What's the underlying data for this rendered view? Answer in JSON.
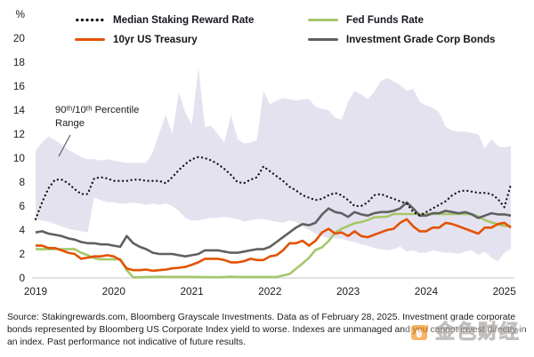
{
  "legend": {
    "items": [
      {
        "label": "Median Staking Reward Rate",
        "style": "dotted",
        "color": "#161616"
      },
      {
        "label": "Fed Funds Rate",
        "style": "solid",
        "color": "#a5c76b"
      },
      {
        "label": "10yr US Treasury",
        "style": "solid",
        "color": "#e25303"
      },
      {
        "label": "Investment Grade Corp Bonds",
        "style": "solid",
        "color": "#606063"
      }
    ]
  },
  "annotation": {
    "text": "90ᵗʰ/10ᵗʰ Percentile Range"
  },
  "source": "Source: Stakingrewards.com, Bloomberg Grayscale Investments. Data as of February 28, 2025. Investment grade corporate bonds represented by Bloomberg US Corporate Index yield to worse. Indexes are unmanaged and you cannot invest directly in an index. Past performance not indicative of future results.",
  "watermark": {
    "text": "金色财经",
    "color": "#f5921e"
  },
  "chart_data": {
    "type": "line",
    "x_start": 2019.0,
    "x_end": 2025.083,
    "x_interval": "monthly",
    "x_tick_labels": [
      "2019",
      "2020",
      "2021",
      "2022",
      "2023",
      "2024",
      "2025"
    ],
    "y_unit": "%",
    "ylim": [
      0,
      20
    ],
    "y_ticks": [
      20,
      18,
      16,
      14,
      12,
      10,
      8,
      6,
      4,
      2,
      0
    ],
    "grid": false,
    "legend_position": "top",
    "band": {
      "name": "90th/10th Percentile Range",
      "color": "#e5e2f0",
      "top": [
        10.6,
        11.3,
        11.8,
        11.5,
        11.1,
        10.7,
        10.4,
        10.1,
        9.9,
        9.9,
        9.8,
        9.9,
        9.8,
        9.7,
        9.6,
        9.6,
        9.6,
        9.6,
        10.5,
        12.1,
        13.6,
        12.0,
        15.5,
        13.8,
        12.8,
        17.6,
        12.6,
        12.7,
        12.0,
        11.3,
        13.6,
        11.6,
        11.2,
        11.3,
        11.5,
        15.6,
        14.5,
        14.8,
        15.0,
        14.9,
        14.8,
        14.9,
        14.9,
        14.3,
        14.1,
        14.0,
        13.4,
        13.2,
        14.7,
        15.6,
        15.3,
        14.9,
        15.5,
        16.4,
        16.7,
        16.4,
        16.1,
        15.6,
        15.8,
        14.7,
        14.4,
        14.2,
        13.8,
        12.6,
        12.3,
        12.2,
        12.2,
        12.1,
        12.0,
        10.8,
        11.6,
        11.0,
        10.9,
        11.0
      ],
      "bottom": [
        4.9,
        4.8,
        4.7,
        4.5,
        4.3,
        4.1,
        4.0,
        3.9,
        3.8,
        6.7,
        6.5,
        6.3,
        6.3,
        6.2,
        6.2,
        6.3,
        6.2,
        6.1,
        6.2,
        6.1,
        6.2,
        6.0,
        5.6,
        5.0,
        4.8,
        4.8,
        4.9,
        5.0,
        5.0,
        5.1,
        5.0,
        4.9,
        4.7,
        4.8,
        4.9,
        4.9,
        4.8,
        4.7,
        4.6,
        4.8,
        4.7,
        4.3,
        4.0,
        3.7,
        3.5,
        3.3,
        3.3,
        3.3,
        3.1,
        3.0,
        2.8,
        2.7,
        2.5,
        2.4,
        2.3,
        2.4,
        2.6,
        2.2,
        2.3,
        2.1,
        2.1,
        2.3,
        2.2,
        2.1,
        2.1,
        2.0,
        2.2,
        2.3,
        1.9,
        2.2,
        1.7,
        1.4,
        2.1,
        2.4
      ]
    },
    "series": [
      {
        "name": "Fed Funds Rate",
        "style": "solid",
        "color": "#a5c76b",
        "values": [
          2.4,
          2.4,
          2.4,
          2.4,
          2.4,
          2.4,
          2.4,
          2.1,
          1.9,
          1.65,
          1.55,
          1.55,
          1.55,
          1.58,
          0.65,
          0.05,
          0.05,
          0.08,
          0.09,
          0.1,
          0.09,
          0.09,
          0.09,
          0.09,
          0.09,
          0.08,
          0.07,
          0.07,
          0.06,
          0.08,
          0.1,
          0.09,
          0.08,
          0.08,
          0.08,
          0.08,
          0.08,
          0.08,
          0.2,
          0.33,
          0.77,
          1.21,
          1.68,
          2.33,
          2.56,
          3.08,
          3.78,
          4.1,
          4.33,
          4.57,
          4.65,
          4.83,
          5.06,
          5.08,
          5.12,
          5.33,
          5.33,
          5.33,
          5.33,
          5.33,
          5.33,
          5.33,
          5.33,
          5.33,
          5.33,
          5.33,
          5.33,
          5.33,
          5.13,
          4.83,
          4.64,
          4.48,
          4.33,
          4.33
        ]
      },
      {
        "name": "Investment Grade Corp Bonds",
        "style": "solid",
        "color": "#606063",
        "values": [
          3.8,
          3.9,
          3.7,
          3.6,
          3.5,
          3.3,
          3.2,
          3.0,
          2.9,
          2.9,
          2.8,
          2.8,
          2.7,
          2.6,
          3.5,
          2.9,
          2.6,
          2.4,
          2.1,
          2.0,
          2.0,
          2.0,
          1.9,
          1.8,
          1.9,
          2.0,
          2.3,
          2.3,
          2.3,
          2.2,
          2.1,
          2.1,
          2.2,
          2.3,
          2.4,
          2.4,
          2.6,
          3.0,
          3.4,
          3.8,
          4.2,
          4.5,
          4.4,
          4.6,
          5.3,
          5.8,
          5.5,
          5.4,
          5.1,
          5.5,
          5.3,
          5.2,
          5.4,
          5.5,
          5.5,
          5.6,
          5.8,
          6.3,
          5.8,
          5.2,
          5.2,
          5.4,
          5.4,
          5.6,
          5.5,
          5.4,
          5.5,
          5.3,
          5.0,
          5.2,
          5.4,
          5.3,
          5.3,
          5.2
        ]
      },
      {
        "name": "10yr US Treasury",
        "style": "solid",
        "color": "#e25303",
        "values": [
          2.7,
          2.7,
          2.5,
          2.5,
          2.3,
          2.1,
          2.0,
          1.6,
          1.7,
          1.8,
          1.8,
          1.9,
          1.8,
          1.5,
          0.8,
          0.65,
          0.65,
          0.7,
          0.6,
          0.65,
          0.7,
          0.8,
          0.85,
          0.92,
          1.1,
          1.3,
          1.6,
          1.6,
          1.6,
          1.5,
          1.3,
          1.3,
          1.4,
          1.6,
          1.5,
          1.5,
          1.8,
          1.9,
          2.3,
          2.9,
          2.9,
          3.1,
          2.7,
          3.1,
          3.8,
          4.1,
          3.7,
          3.8,
          3.5,
          3.9,
          3.5,
          3.4,
          3.6,
          3.8,
          4.0,
          4.1,
          4.6,
          4.9,
          4.3,
          3.9,
          3.9,
          4.2,
          4.2,
          4.6,
          4.5,
          4.3,
          4.1,
          3.9,
          3.7,
          4.2,
          4.2,
          4.5,
          4.6,
          4.2
        ]
      },
      {
        "name": "Median Staking Reward Rate",
        "style": "dotted",
        "color": "#161616",
        "values": [
          4.9,
          6.3,
          7.5,
          8.2,
          8.2,
          7.9,
          7.4,
          7.0,
          7.0,
          8.3,
          8.4,
          8.3,
          8.1,
          8.1,
          8.1,
          8.2,
          8.2,
          8.1,
          8.1,
          8.1,
          7.9,
          8.4,
          9.0,
          9.5,
          9.9,
          10.1,
          10.0,
          9.8,
          9.5,
          9.1,
          8.6,
          8.0,
          7.9,
          8.2,
          8.4,
          9.3,
          8.9,
          8.5,
          8.1,
          7.6,
          7.3,
          6.9,
          6.7,
          6.5,
          6.6,
          6.9,
          7.1,
          6.9,
          6.5,
          6.0,
          6.0,
          6.3,
          6.9,
          7.0,
          6.8,
          6.6,
          6.4,
          6.2,
          5.5,
          5.2,
          5.5,
          5.8,
          6.1,
          6.4,
          6.9,
          7.2,
          7.3,
          7.2,
          7.1,
          7.1,
          7.0,
          6.6,
          5.9,
          7.8
        ]
      }
    ]
  }
}
